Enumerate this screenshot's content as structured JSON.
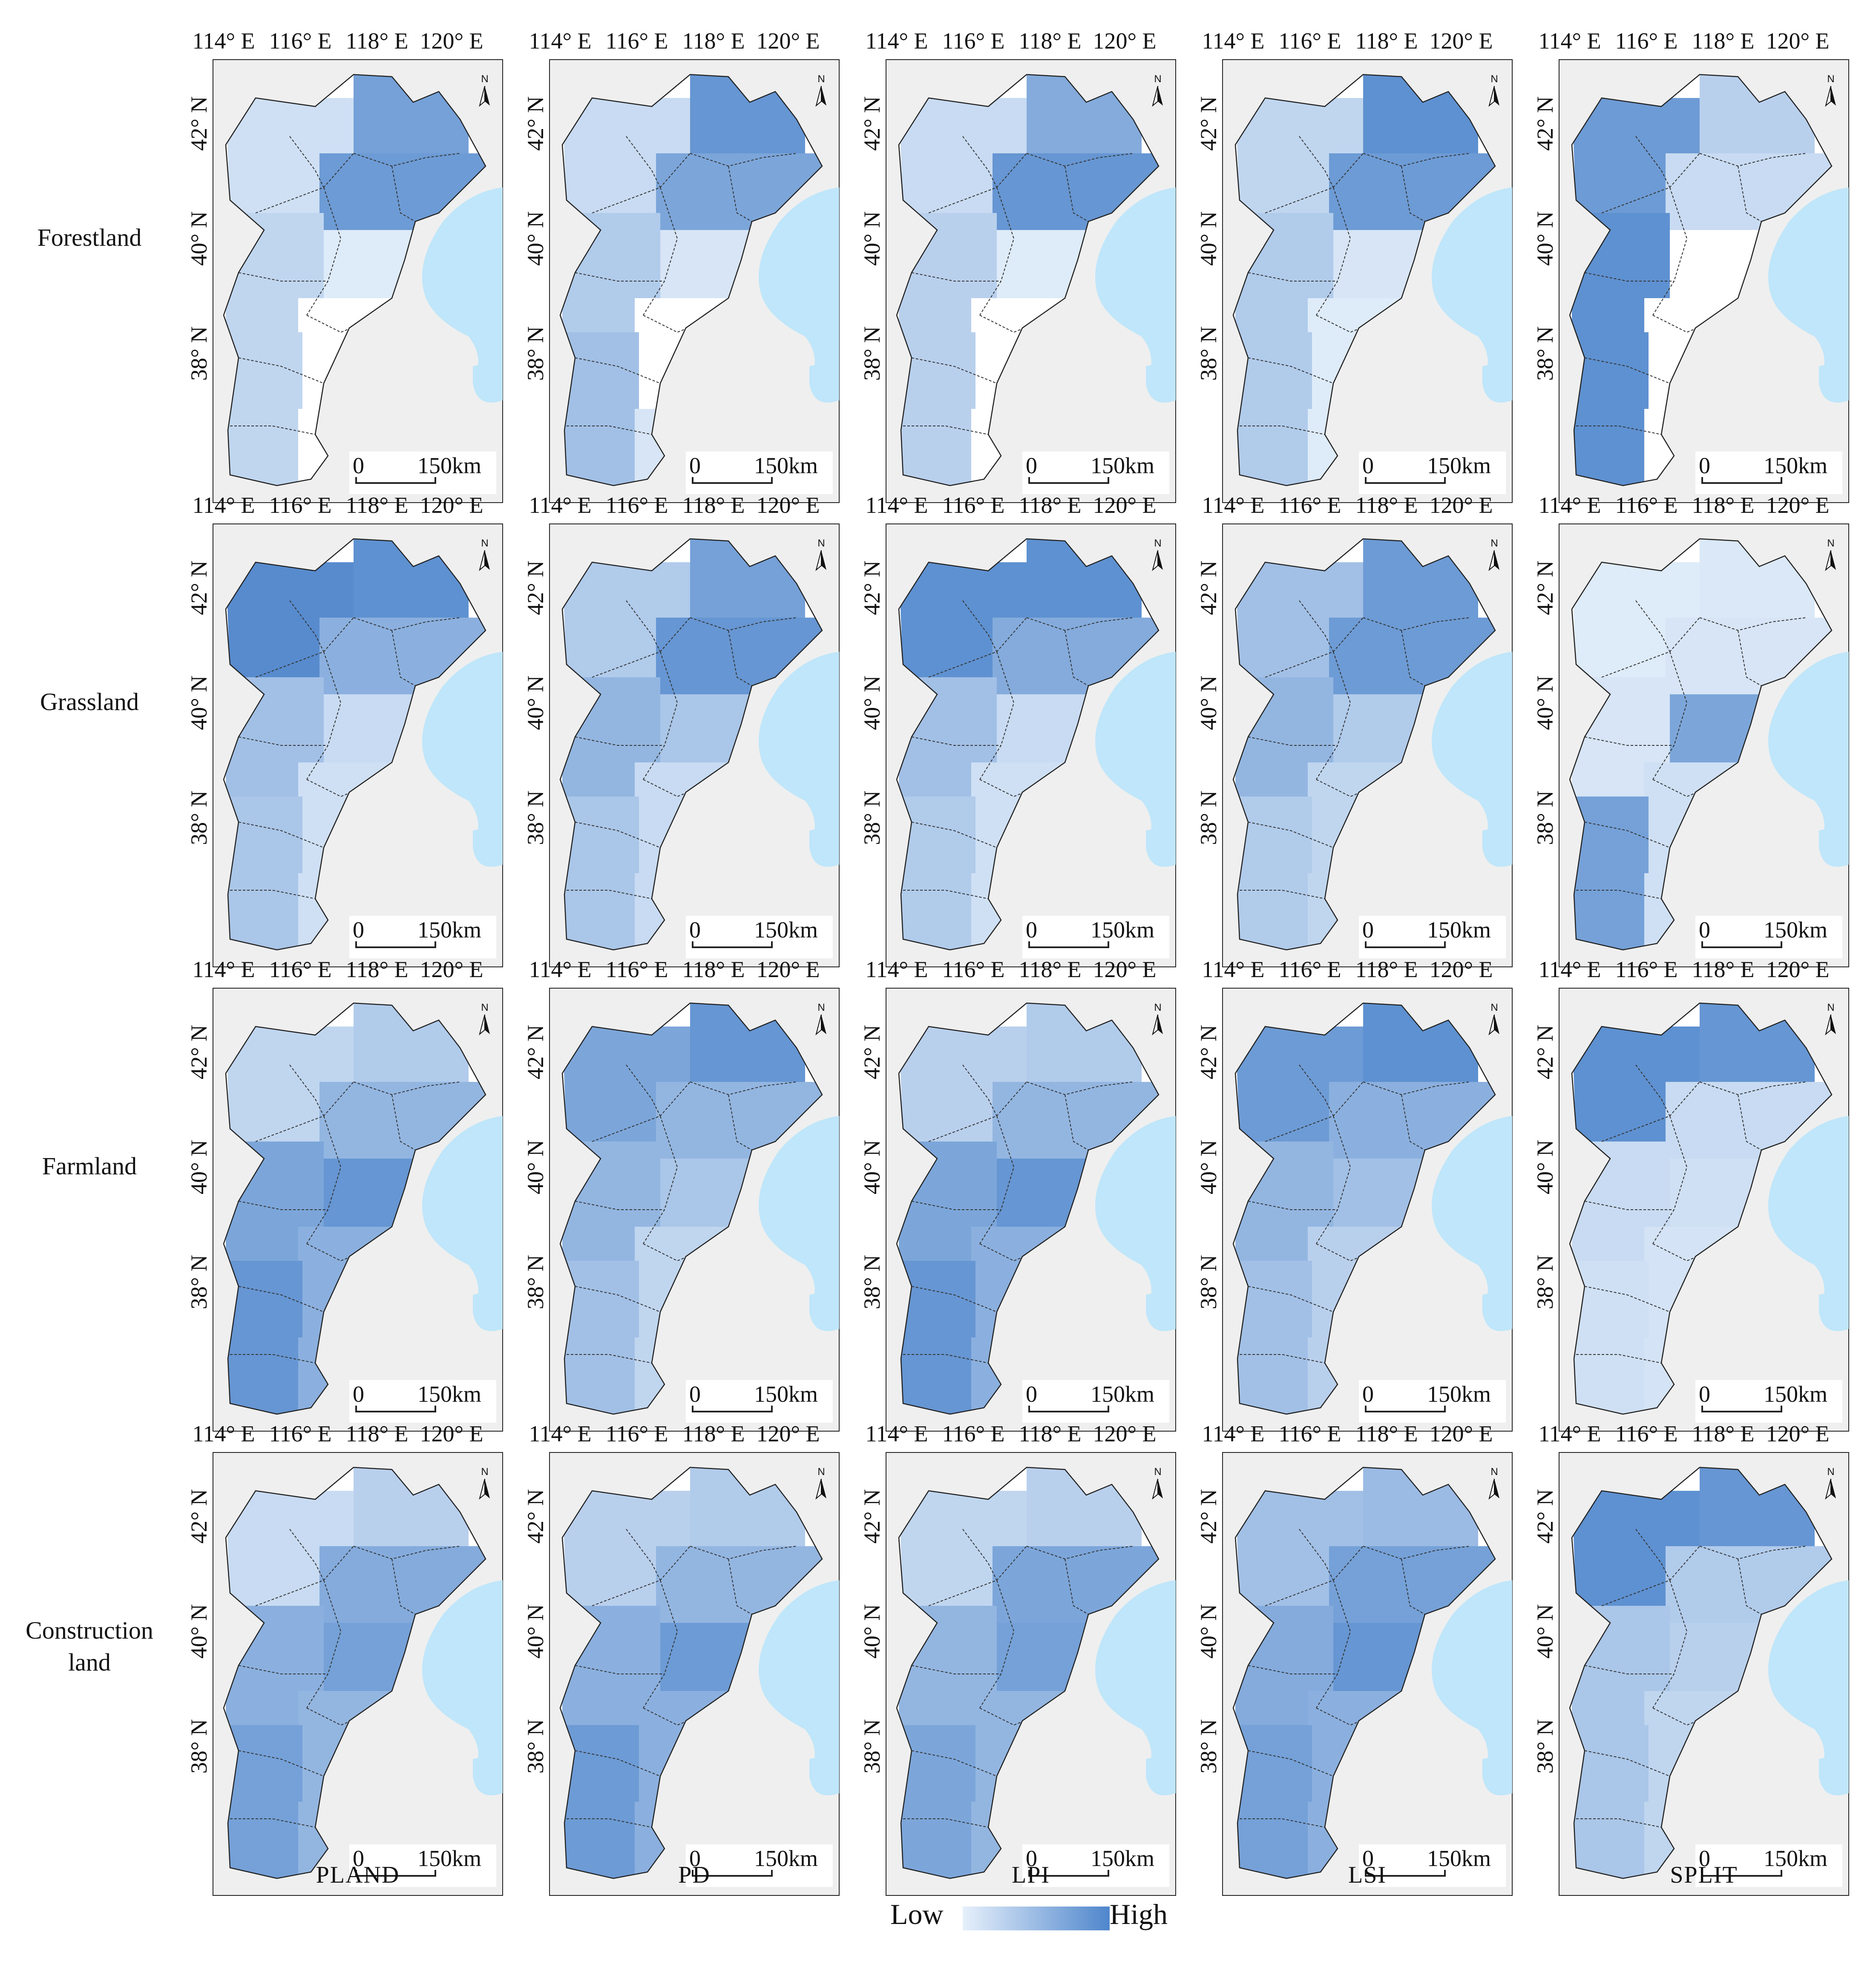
{
  "figure": {
    "rows": [
      {
        "key": "forestland",
        "label": "Forestland"
      },
      {
        "key": "grassland",
        "label": "Grassland"
      },
      {
        "key": "farmland",
        "label": "Farmland"
      },
      {
        "key": "construction",
        "label": "Construction land"
      }
    ],
    "columns": [
      {
        "key": "pland",
        "label": "PLAND"
      },
      {
        "key": "pd",
        "label": "PD"
      },
      {
        "key": "lpi",
        "label": "LPI"
      },
      {
        "key": "lsi",
        "label": "LSI"
      },
      {
        "key": "split",
        "label": "SPLIT"
      }
    ],
    "lon_ticks": [
      "114° E",
      "116° E",
      "118° E",
      "120° E"
    ],
    "lat_ticks": [
      "42° N",
      "40° N",
      "38° N"
    ],
    "scalebar": {
      "start": "0",
      "distance": "150",
      "unit": "km"
    },
    "north_label": "N",
    "legend": {
      "low": "Low",
      "high": "High"
    },
    "colors": {
      "low": "#e6f0fb",
      "high": "#4f86cc",
      "sea": "#bfe6fa",
      "background": "#efefef",
      "none": "#ffffff",
      "boundary": "#333333"
    },
    "intensity": {
      "forestland": {
        "pland": [
          0.15,
          0.75,
          0.8,
          0.25,
          0.05,
          0.02,
          0.25,
          0.02
        ],
        "pd": [
          0.2,
          0.85,
          0.7,
          0.35,
          0.1,
          0.02,
          0.45,
          0.1
        ],
        "lpi": [
          0.2,
          0.65,
          0.85,
          0.3,
          0.05,
          0.02,
          0.3,
          0.02
        ],
        "lsi": [
          0.25,
          0.9,
          0.8,
          0.35,
          0.1,
          0.05,
          0.35,
          0.05
        ],
        "split": [
          0.8,
          0.3,
          0.2,
          0.9,
          0.02,
          0.02,
          0.9,
          0.02
        ]
      },
      "grassland": {
        "pland": [
          0.95,
          0.9,
          0.6,
          0.45,
          0.2,
          0.15,
          0.4,
          0.15
        ],
        "pd": [
          0.35,
          0.75,
          0.85,
          0.55,
          0.4,
          0.2,
          0.4,
          0.2
        ],
        "lpi": [
          0.9,
          0.9,
          0.65,
          0.45,
          0.2,
          0.15,
          0.35,
          0.15
        ],
        "lsi": [
          0.45,
          0.8,
          0.8,
          0.55,
          0.35,
          0.25,
          0.35,
          0.25
        ],
        "split": [
          0.05,
          0.08,
          0.1,
          0.1,
          0.7,
          0.15,
          0.75,
          0.15
        ]
      },
      "farmland": {
        "pland": [
          0.25,
          0.35,
          0.55,
          0.7,
          0.85,
          0.6,
          0.85,
          0.6
        ],
        "pd": [
          0.7,
          0.85,
          0.55,
          0.55,
          0.4,
          0.25,
          0.45,
          0.25
        ],
        "lpi": [
          0.3,
          0.35,
          0.55,
          0.7,
          0.85,
          0.6,
          0.85,
          0.6
        ],
        "lsi": [
          0.8,
          0.9,
          0.6,
          0.55,
          0.45,
          0.3,
          0.45,
          0.3
        ],
        "split": [
          0.9,
          0.85,
          0.2,
          0.2,
          0.15,
          0.12,
          0.15,
          0.12
        ]
      },
      "construction": {
        "pland": [
          0.2,
          0.3,
          0.65,
          0.6,
          0.75,
          0.55,
          0.75,
          0.55
        ],
        "pd": [
          0.3,
          0.35,
          0.55,
          0.6,
          0.8,
          0.6,
          0.8,
          0.6
        ],
        "lpi": [
          0.25,
          0.3,
          0.7,
          0.55,
          0.75,
          0.55,
          0.7,
          0.55
        ],
        "lsi": [
          0.45,
          0.5,
          0.75,
          0.65,
          0.85,
          0.6,
          0.75,
          0.6
        ],
        "split": [
          0.9,
          0.85,
          0.35,
          0.4,
          0.3,
          0.25,
          0.4,
          0.25
        ]
      }
    }
  }
}
